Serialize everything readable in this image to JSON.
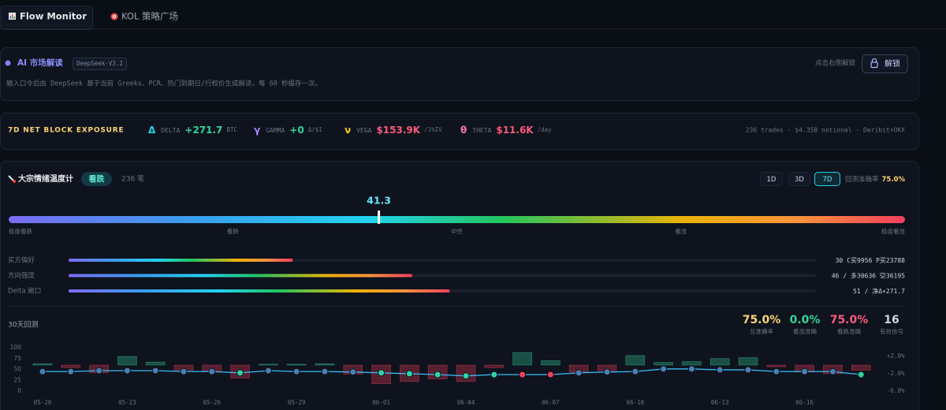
{
  "tabs": [
    "Flow Monitor",
    "KOL 策略广场"
  ],
  "ai_panel": {
    "title": "AI 市场解读",
    "model": "DeepSeek-V3.2",
    "hint": "点击右侧解锁",
    "button": "解锁",
    "description": "输入口令后由 DeepSeek 基于当前 Greeks、PCR、热门到期日/行权价生成解读，每 60 秒缓存一次。"
  },
  "exposure": {
    "title": "7D NET BLOCK EXPOSURE",
    "greeks": [
      {
        "symbol": "Δ",
        "name": "DELTA",
        "value": "+271.7",
        "unit": "BTC",
        "color": "#22d3ee",
        "value_color": "#34d399"
      },
      {
        "symbol": "γ",
        "name": "GAMMA",
        "value": "+0",
        "unit": "Δ/$1",
        "color": "#a78bfa",
        "value_color": "#34d399"
      },
      {
        "symbol": "ν",
        "name": "VEGA",
        "value": "$153.9K",
        "unit": "/1%IV",
        "color": "#facc15",
        "value_color": "#fb5a7a"
      },
      {
        "symbol": "θ",
        "name": "THETA",
        "value": "$11.6K",
        "unit": "/day",
        "color": "#f472b6",
        "value_color": "#fb5a7a"
      }
    ],
    "summary": "236 trades · $4.35B notional · Deribit+OKX"
  },
  "sentiment": {
    "title": "大宗情绪温度计",
    "signal": "看跌",
    "count": "236 笔",
    "periods": [
      "1D",
      "3D",
      "7D"
    ],
    "accuracy_label": "回测准确率",
    "accuracy": "75.0%",
    "score": 41.3,
    "score_lim": [
      0,
      100
    ],
    "scale_labels": [
      "极度看跌",
      "看跌",
      "中性",
      "看涨",
      "极度看涨"
    ],
    "factors": [
      {
        "name": "买方偏好",
        "value": 30,
        "detail": "C买9956 P买23788"
      },
      {
        "name": "方向强度",
        "value": 46,
        "detail": "/ 多30636 空36195"
      },
      {
        "name": "Delta 敞口",
        "value": 51,
        "detail": "/ 净Δ+271.7"
      }
    ]
  },
  "backtest": {
    "title": "30天回测",
    "stats": [
      {
        "value": "75.0%",
        "label": "总准确率",
        "color": "#fcd473"
      },
      {
        "value": "0.0%",
        "label": "看涨准确",
        "color": "#34d399"
      },
      {
        "value": "75.0%",
        "label": "看跌准确",
        "color": "#fb5a7a"
      },
      {
        "value": "16",
        "label": "有效信号",
        "color": "#cbd5e1"
      }
    ]
  },
  "chart_data": {
    "type": "bar_line",
    "categories": [
      "05-20",
      null,
      null,
      "05-23",
      null,
      null,
      "05-26",
      null,
      null,
      "05-29",
      null,
      null,
      "06-01",
      null,
      null,
      "06-04",
      null,
      null,
      "06-07",
      null,
      null,
      "06-10",
      null,
      null,
      "06-13",
      null,
      null,
      "06-16",
      null,
      null
    ],
    "series": [
      {
        "type": "bar",
        "axis": "y2",
        "positive_color": "#34d399",
        "negative_color": "#f43f5e",
        "values": [
          0.3,
          -0.6,
          -1.8,
          2.0,
          0.7,
          -1.2,
          -1.4,
          -3.0,
          0.2,
          0.2,
          0.3,
          -2.1,
          -4.3,
          -3.8,
          -3.2,
          -3.8,
          -0.6,
          2.9,
          1.0,
          -1.6,
          -1.3,
          2.2,
          0.6,
          0.8,
          1.5,
          1.7,
          -0.4,
          -1.6,
          -2.0,
          -1.2
        ]
      },
      {
        "type": "line",
        "color": "#38bdf8",
        "values": [
          45,
          45,
          47,
          47,
          47,
          45,
          45,
          42,
          47,
          45,
          45,
          44,
          42,
          40,
          38,
          35,
          38,
          38,
          38,
          42,
          44,
          45,
          51,
          51,
          49,
          49,
          45,
          45,
          45,
          38
        ],
        "point_colors": [
          "#4b7fb3",
          "#4b7fb3",
          "#4b7fb3",
          "#4b7fb3",
          "#4b7fb3",
          "#4b7fb3",
          "#4b7fb3",
          "#2dd4a0",
          "#4b7fb3",
          "#4b7fb3",
          "#4b7fb3",
          "#4b7fb3",
          "#2dd4a0",
          "#2dd4a0",
          "#2dd4a0",
          "#2dd4a0",
          "#2dd4a0",
          "#f43f5e",
          "#f43f5e",
          "#4b7fb3",
          "#4b7fb3",
          "#4b7fb3",
          "#4b7fb3",
          "#4b7fb3",
          "#4b7fb3",
          "#4b7fb3",
          "#4b7fb3",
          "#4b7fb3",
          "#4b7fb3",
          "#2dd4a0"
        ]
      }
    ],
    "ylim": [
      0,
      100
    ],
    "yticks": [
      100,
      75,
      50,
      25,
      0
    ],
    "y2lim": [
      -6,
      4
    ],
    "y2ticks": [
      {
        "value": 2,
        "label": "+2.0%"
      },
      {
        "value": -2,
        "label": "-2.0%"
      },
      {
        "value": -6,
        "label": "-6.0%"
      }
    ]
  }
}
